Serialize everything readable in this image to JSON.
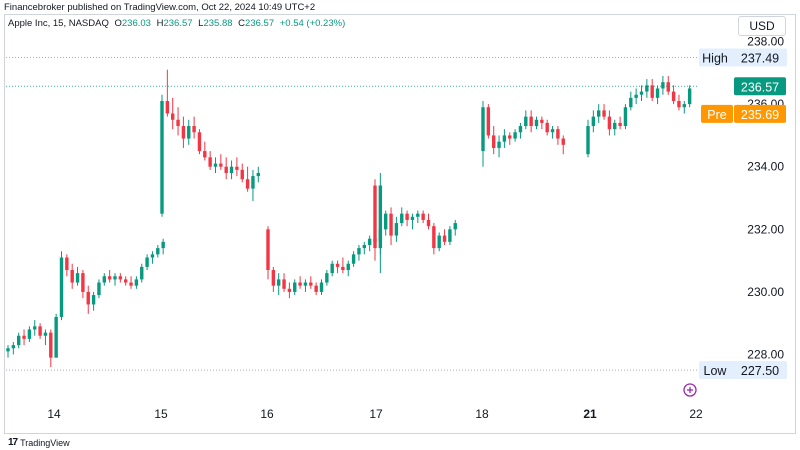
{
  "publisher_line": "Financebroker published on TradingView.com, Oct 22, 2024 10:49 UTC+2",
  "symbol": {
    "name": "Apple Inc, 15, NASDAQ",
    "open_label": "O",
    "open": "236.03",
    "high_label": "H",
    "high": "236.57",
    "low_label": "L",
    "low": "235.88",
    "close_label": "C",
    "close": "236.57",
    "change": "+0.54 (+0.23%)"
  },
  "currency": "USD",
  "footer": {
    "logo": "17",
    "brand": "TradingView"
  },
  "colors": {
    "up": "#089981",
    "down": "#f23645",
    "pre_badge": "#ff9800",
    "high_low_badge": "#e3effd",
    "grid": "#d1d4dc",
    "axis_text": "#131722"
  },
  "chart_data": {
    "type": "candlestick",
    "interval": "15",
    "ylim": [
      226.8,
      239.0
    ],
    "y_ticks": [
      228.0,
      230.0,
      232.0,
      234.0,
      236.0,
      238.0
    ],
    "y_tick_labels": [
      "228.00",
      "230.00",
      "232.00",
      "234.00",
      "236.00",
      "238.00"
    ],
    "x_tick_labels": [
      "14",
      "15",
      "16",
      "17",
      "18",
      "21",
      "22"
    ],
    "x_tick_bold": [
      "21"
    ],
    "sessions": [
      {
        "day": "14",
        "candles": [
          [
            228.1,
            228.3,
            227.9,
            228.2
          ],
          [
            228.2,
            228.4,
            228.0,
            228.3
          ],
          [
            228.3,
            228.7,
            228.2,
            228.6
          ],
          [
            228.6,
            228.8,
            228.3,
            228.5
          ],
          [
            228.5,
            228.9,
            228.4,
            228.8
          ],
          [
            228.8,
            229.1,
            228.6,
            228.9
          ],
          [
            228.9,
            229.0,
            228.5,
            228.6
          ],
          [
            228.6,
            228.8,
            228.3,
            228.7
          ],
          [
            228.7,
            228.8,
            227.6,
            227.9
          ],
          [
            227.9,
            229.3,
            227.9,
            229.2
          ],
          [
            229.2,
            231.3,
            229.1,
            231.1
          ],
          [
            231.1,
            231.2,
            230.5,
            230.7
          ],
          [
            230.7,
            230.9,
            230.1,
            230.3
          ],
          [
            230.3,
            230.8,
            230.2,
            230.6
          ],
          [
            230.6,
            230.7,
            229.8,
            230.0
          ],
          [
            230.0,
            230.2,
            229.3,
            229.6
          ],
          [
            229.6,
            230.0,
            229.4,
            229.9
          ],
          [
            229.9,
            230.4,
            229.8,
            230.3
          ],
          [
            230.3,
            230.6,
            230.2,
            230.5
          ],
          [
            230.5,
            230.7,
            230.3,
            230.4
          ],
          [
            230.4,
            230.6,
            230.2,
            230.5
          ],
          [
            230.5,
            230.6,
            230.3,
            230.4
          ],
          [
            230.4,
            230.5,
            230.2,
            230.3
          ],
          [
            230.3,
            230.5,
            230.1,
            230.2
          ],
          [
            230.2,
            230.5,
            230.1,
            230.4
          ],
          [
            230.4,
            230.9,
            230.3,
            230.8
          ],
          [
            230.8,
            231.2,
            230.7,
            231.1
          ],
          [
            231.1,
            231.3,
            230.9,
            231.2
          ],
          [
            231.2,
            231.5,
            231.1,
            231.4
          ],
          [
            231.4,
            231.7,
            231.2,
            231.6
          ]
        ]
      },
      {
        "day": "15",
        "candles": [
          [
            232.5,
            236.3,
            232.4,
            236.1
          ],
          [
            236.1,
            237.1,
            235.6,
            235.7
          ],
          [
            235.7,
            236.2,
            235.2,
            235.5
          ],
          [
            235.5,
            235.9,
            235.0,
            235.3
          ],
          [
            235.3,
            235.6,
            234.6,
            234.9
          ],
          [
            234.9,
            235.5,
            234.7,
            235.3
          ],
          [
            235.3,
            235.6,
            234.9,
            235.1
          ],
          [
            235.1,
            235.2,
            234.4,
            234.5
          ],
          [
            234.5,
            234.8,
            234.2,
            234.3
          ],
          [
            234.3,
            234.5,
            233.9,
            234.0
          ],
          [
            234.0,
            234.3,
            233.8,
            234.1
          ],
          [
            234.1,
            234.4,
            233.9,
            234.0
          ],
          [
            234.0,
            234.3,
            233.6,
            233.8
          ],
          [
            233.8,
            234.2,
            233.6,
            234.0
          ],
          [
            234.0,
            234.3,
            233.7,
            233.9
          ],
          [
            233.9,
            234.1,
            233.5,
            233.6
          ],
          [
            233.6,
            234.0,
            233.2,
            233.3
          ],
          [
            233.3,
            233.9,
            232.9,
            233.7
          ],
          [
            233.7,
            234.0,
            233.5,
            233.8
          ]
        ]
      },
      {
        "day": "16",
        "candles": [
          [
            232.0,
            232.1,
            230.4,
            230.7
          ],
          [
            230.7,
            230.8,
            230.0,
            230.2
          ],
          [
            230.2,
            230.6,
            229.9,
            230.4
          ],
          [
            230.4,
            230.6,
            230.0,
            230.1
          ],
          [
            230.1,
            230.3,
            229.8,
            230.0
          ],
          [
            230.0,
            230.4,
            229.9,
            230.3
          ],
          [
            230.3,
            230.5,
            230.1,
            230.2
          ],
          [
            230.2,
            230.4,
            230.0,
            230.3
          ],
          [
            230.3,
            230.5,
            230.1,
            230.2
          ],
          [
            230.2,
            230.3,
            229.9,
            230.0
          ],
          [
            230.0,
            230.4,
            229.9,
            230.3
          ],
          [
            230.3,
            230.7,
            230.2,
            230.6
          ],
          [
            230.6,
            231.0,
            230.5,
            230.9
          ],
          [
            230.9,
            231.0,
            230.6,
            230.8
          ],
          [
            230.8,
            231.1,
            230.6,
            230.7
          ],
          [
            230.7,
            231.0,
            230.5,
            230.9
          ],
          [
            230.9,
            231.3,
            230.8,
            231.2
          ],
          [
            231.2,
            231.5,
            231.0,
            231.4
          ],
          [
            231.4,
            231.6,
            231.2,
            231.5
          ],
          [
            231.5,
            231.8,
            231.3,
            231.7
          ],
          [
            231.7,
            232.0,
            231.5,
            231.6
          ],
          [
            231.6,
            233.8,
            230.6,
            233.4
          ]
        ]
      },
      {
        "day": "17",
        "candles": [
          [
            233.4,
            233.6,
            231.0,
            231.4
          ],
          [
            231.4,
            232.2,
            231.2,
            232.0
          ],
          [
            232.0,
            232.6,
            231.8,
            232.5
          ],
          [
            232.5,
            232.7,
            231.5,
            231.8
          ],
          [
            231.8,
            232.4,
            231.6,
            232.2
          ],
          [
            232.2,
            232.7,
            232.1,
            232.5
          ],
          [
            232.5,
            232.6,
            232.1,
            232.3
          ],
          [
            232.3,
            232.5,
            232.0,
            232.4
          ],
          [
            232.4,
            232.6,
            232.2,
            232.5
          ],
          [
            232.5,
            232.6,
            232.2,
            232.3
          ],
          [
            232.3,
            232.5,
            232.0,
            232.1
          ],
          [
            232.1,
            232.2,
            231.2,
            231.4
          ],
          [
            231.4,
            231.9,
            231.3,
            231.8
          ],
          [
            231.8,
            232.0,
            231.5,
            231.6
          ],
          [
            231.6,
            232.1,
            231.5,
            232.0
          ],
          [
            232.0,
            232.3,
            231.8,
            232.2
          ]
        ]
      },
      {
        "day": "18",
        "candles": [
          [
            234.5,
            236.1,
            234.0,
            235.9
          ],
          [
            235.9,
            236.0,
            234.9,
            235.0
          ],
          [
            235.0,
            235.3,
            234.4,
            234.6
          ],
          [
            234.6,
            235.0,
            234.3,
            234.8
          ],
          [
            234.8,
            235.2,
            234.6,
            235.0
          ],
          [
            235.0,
            235.1,
            234.7,
            234.9
          ],
          [
            234.9,
            235.2,
            234.8,
            235.1
          ],
          [
            235.1,
            235.4,
            234.9,
            235.3
          ],
          [
            235.3,
            235.8,
            235.2,
            235.6
          ],
          [
            235.6,
            235.8,
            235.1,
            235.3
          ],
          [
            235.3,
            235.6,
            235.2,
            235.5
          ],
          [
            235.5,
            235.6,
            235.2,
            235.4
          ],
          [
            235.4,
            235.5,
            235.0,
            235.1
          ],
          [
            235.1,
            235.3,
            234.9,
            235.2
          ],
          [
            235.2,
            235.3,
            234.7,
            234.9
          ],
          [
            234.9,
            235.0,
            234.4,
            234.7
          ]
        ]
      },
      {
        "day": "21",
        "candles": [
          [
            234.4,
            235.5,
            234.3,
            235.3
          ],
          [
            235.3,
            235.8,
            235.1,
            235.6
          ],
          [
            235.6,
            236.0,
            235.4,
            235.8
          ],
          [
            235.8,
            236.0,
            235.5,
            235.6
          ],
          [
            235.6,
            235.8,
            235.0,
            235.2
          ],
          [
            235.2,
            235.5,
            235.0,
            235.4
          ],
          [
            235.4,
            235.6,
            235.2,
            235.3
          ],
          [
            235.3,
            236.0,
            235.2,
            235.9
          ],
          [
            235.9,
            236.4,
            235.8,
            236.2
          ],
          [
            236.2,
            236.5,
            236.0,
            236.3
          ],
          [
            236.3,
            236.6,
            236.1,
            236.4
          ],
          [
            236.4,
            236.8,
            236.2,
            236.6
          ],
          [
            236.6,
            236.8,
            236.1,
            236.2
          ],
          [
            236.2,
            236.6,
            236.0,
            236.5
          ],
          [
            236.5,
            236.9,
            236.3,
            236.7
          ],
          [
            236.7,
            236.9,
            236.3,
            236.4
          ],
          [
            236.4,
            236.6,
            236.0,
            236.1
          ],
          [
            236.1,
            236.3,
            235.8,
            235.9
          ],
          [
            235.9,
            236.1,
            235.7,
            236.0
          ],
          [
            236.0,
            236.6,
            235.9,
            236.5
          ]
        ]
      }
    ],
    "price_lines": [
      {
        "label": "High",
        "value": 237.49,
        "text": "237.49",
        "style": "dotted"
      },
      {
        "label": "",
        "value": 236.57,
        "text": "236.57",
        "style": "dotted-green"
      },
      {
        "label": "Pre",
        "value": 235.69,
        "text": "235.69",
        "style": "badge"
      },
      {
        "label": "Low",
        "value": 227.5,
        "text": "227.50",
        "style": "dotted"
      }
    ]
  }
}
